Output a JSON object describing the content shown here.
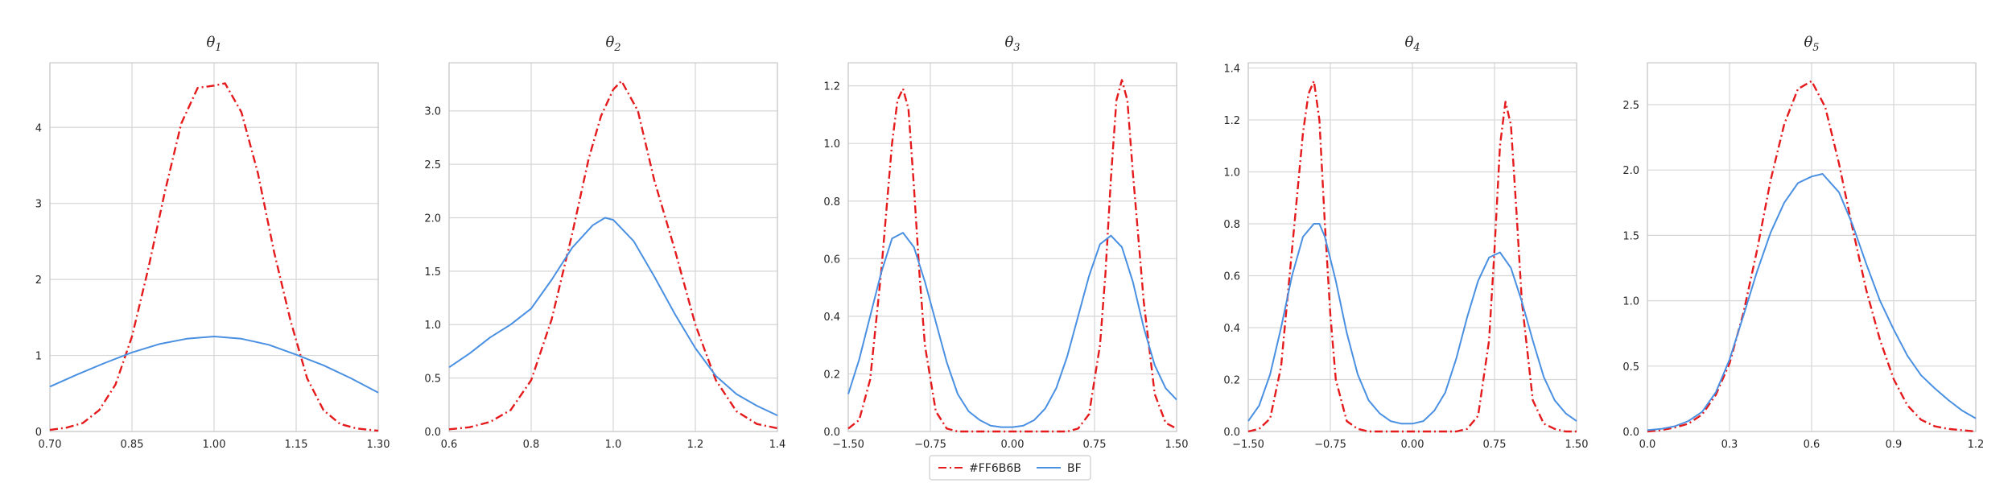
{
  "colors": {
    "series_1": "#e41a1c",
    "series_2": "#4a90e2"
  },
  "legend": {
    "placement": "bottom-center",
    "entries": [
      {
        "label": "#FF6B6B",
        "style": "dash-dot",
        "color": "#e41a1c"
      },
      {
        "label": "BF",
        "style": "solid",
        "color": "#4a90e2"
      }
    ]
  },
  "chart_data": [
    {
      "type": "line",
      "title": "θ",
      "title_subscript": "1",
      "xlim": [
        0.7,
        1.3
      ],
      "ylim": [
        0,
        4.85
      ],
      "xticks": [
        0.7,
        0.85,
        1.0,
        1.15,
        1.3
      ],
      "xtick_labels": [
        "0.70",
        "0.85",
        "1.00",
        "1.15",
        "1.30"
      ],
      "yticks": [
        0,
        1,
        2,
        3,
        4
      ],
      "ytick_labels": [
        "0",
        "1",
        "2",
        "3",
        "4"
      ],
      "grid": true,
      "series": [
        {
          "name": "#FF6B6B",
          "x": [
            0.7,
            0.73,
            0.76,
            0.79,
            0.82,
            0.85,
            0.88,
            0.91,
            0.94,
            0.97,
            0.99,
            1.0,
            1.02,
            1.05,
            1.08,
            1.11,
            1.14,
            1.17,
            1.2,
            1.23,
            1.26,
            1.3
          ],
          "y": [
            0.02,
            0.05,
            0.11,
            0.28,
            0.62,
            1.25,
            2.15,
            3.15,
            4.05,
            4.52,
            4.54,
            4.55,
            4.58,
            4.2,
            3.4,
            2.35,
            1.45,
            0.7,
            0.28,
            0.1,
            0.04,
            0.01
          ]
        },
        {
          "name": "BF",
          "x": [
            0.7,
            0.75,
            0.8,
            0.85,
            0.9,
            0.95,
            1.0,
            1.05,
            1.1,
            1.15,
            1.2,
            1.25,
            1.3
          ],
          "y": [
            0.59,
            0.75,
            0.9,
            1.04,
            1.15,
            1.22,
            1.25,
            1.22,
            1.14,
            1.01,
            0.87,
            0.7,
            0.51
          ]
        }
      ]
    },
    {
      "type": "line",
      "title": "θ",
      "title_subscript": "2",
      "xlim": [
        0.6,
        1.4
      ],
      "ylim": [
        0,
        3.45
      ],
      "xticks": [
        0.6,
        0.8,
        1.0,
        1.2,
        1.4
      ],
      "xtick_labels": [
        "0.6",
        "0.8",
        "1.0",
        "1.2",
        "1.4"
      ],
      "yticks": [
        0,
        0.5,
        1.0,
        1.5,
        2.0,
        2.5,
        3.0
      ],
      "ytick_labels": [
        "0.0",
        "0.5",
        "1.0",
        "1.5",
        "2.0",
        "2.5",
        "3.0"
      ],
      "grid": true,
      "series": [
        {
          "name": "#FF6B6B",
          "x": [
            0.6,
            0.65,
            0.7,
            0.75,
            0.8,
            0.85,
            0.9,
            0.94,
            0.97,
            1.0,
            1.02,
            1.06,
            1.1,
            1.15,
            1.2,
            1.25,
            1.3,
            1.35,
            1.4
          ],
          "y": [
            0.02,
            0.04,
            0.09,
            0.2,
            0.48,
            1.05,
            1.85,
            2.55,
            2.95,
            3.2,
            3.28,
            3.0,
            2.35,
            1.7,
            1.0,
            0.48,
            0.19,
            0.07,
            0.03
          ]
        },
        {
          "name": "BF",
          "x": [
            0.6,
            0.65,
            0.7,
            0.75,
            0.8,
            0.85,
            0.9,
            0.95,
            0.98,
            1.0,
            1.05,
            1.1,
            1.15,
            1.2,
            1.25,
            1.3,
            1.35,
            1.4
          ],
          "y": [
            0.6,
            0.73,
            0.88,
            1.0,
            1.15,
            1.42,
            1.72,
            1.93,
            2.0,
            1.98,
            1.78,
            1.45,
            1.1,
            0.78,
            0.52,
            0.35,
            0.24,
            0.15
          ]
        }
      ]
    },
    {
      "type": "line",
      "title": "θ",
      "title_subscript": "3",
      "xlim": [
        -1.5,
        1.5
      ],
      "ylim": [
        0,
        1.28
      ],
      "xticks": [
        -1.5,
        -0.75,
        0.0,
        0.75,
        1.5
      ],
      "xtick_labels": [
        "−1.50",
        "−0.75",
        "0.00",
        "0.75",
        "1.50"
      ],
      "yticks": [
        0,
        0.2,
        0.4,
        0.6,
        0.8,
        1.0,
        1.2
      ],
      "ytick_labels": [
        "0.0",
        "0.2",
        "0.4",
        "0.6",
        "0.8",
        "1.0",
        "1.2"
      ],
      "grid": true,
      "series": [
        {
          "name": "#FF6B6B",
          "x": [
            -1.5,
            -1.4,
            -1.3,
            -1.2,
            -1.1,
            -1.05,
            -1.0,
            -0.95,
            -0.9,
            -0.85,
            -0.8,
            -0.7,
            -0.6,
            -0.5,
            -0.3,
            0.0,
            0.3,
            0.5,
            0.6,
            0.7,
            0.8,
            0.85,
            0.9,
            0.95,
            1.0,
            1.05,
            1.1,
            1.2,
            1.3,
            1.4,
            1.5
          ],
          "y": [
            0.01,
            0.04,
            0.18,
            0.55,
            1.0,
            1.15,
            1.19,
            1.12,
            0.85,
            0.55,
            0.3,
            0.07,
            0.01,
            0.0,
            0.0,
            0.0,
            0.0,
            0.0,
            0.01,
            0.06,
            0.3,
            0.55,
            0.88,
            1.15,
            1.22,
            1.15,
            0.9,
            0.45,
            0.13,
            0.03,
            0.01
          ]
        },
        {
          "name": "BF",
          "x": [
            -1.5,
            -1.4,
            -1.3,
            -1.2,
            -1.1,
            -1.0,
            -0.9,
            -0.8,
            -0.7,
            -0.6,
            -0.5,
            -0.4,
            -0.3,
            -0.2,
            -0.1,
            0.0,
            0.1,
            0.2,
            0.3,
            0.4,
            0.5,
            0.6,
            0.7,
            0.8,
            0.9,
            1.0,
            1.1,
            1.2,
            1.3,
            1.4,
            1.5
          ],
          "y": [
            0.13,
            0.25,
            0.4,
            0.55,
            0.67,
            0.69,
            0.64,
            0.52,
            0.38,
            0.24,
            0.13,
            0.07,
            0.04,
            0.02,
            0.015,
            0.015,
            0.02,
            0.04,
            0.08,
            0.15,
            0.26,
            0.4,
            0.54,
            0.65,
            0.68,
            0.64,
            0.52,
            0.36,
            0.23,
            0.15,
            0.11
          ]
        }
      ]
    },
    {
      "type": "line",
      "title": "θ",
      "title_subscript": "4",
      "xlim": [
        -1.5,
        1.5
      ],
      "ylim": [
        0,
        1.42
      ],
      "xticks": [
        -1.5,
        -0.75,
        0.0,
        0.75,
        1.5
      ],
      "xtick_labels": [
        "−1.50",
        "−0.75",
        "0.00",
        "0.75",
        "1.50"
      ],
      "yticks": [
        0,
        0.2,
        0.4,
        0.6,
        0.8,
        1.0,
        1.2,
        1.4
      ],
      "ytick_labels": [
        "0.0",
        "0.2",
        "0.4",
        "0.6",
        "0.8",
        "1.0",
        "1.2",
        "1.4"
      ],
      "grid": true,
      "series": [
        {
          "name": "#FF6B6B",
          "x": [
            -1.5,
            -1.4,
            -1.3,
            -1.2,
            -1.1,
            -1.0,
            -0.95,
            -0.9,
            -0.85,
            -0.8,
            -0.75,
            -0.7,
            -0.6,
            -0.5,
            -0.4,
            -0.2,
            0.0,
            0.2,
            0.4,
            0.5,
            0.6,
            0.7,
            0.75,
            0.8,
            0.85,
            0.9,
            0.95,
            1.0,
            1.1,
            1.2,
            1.3,
            1.4,
            1.5
          ],
          "y": [
            0.0,
            0.01,
            0.05,
            0.25,
            0.7,
            1.15,
            1.3,
            1.35,
            1.2,
            0.8,
            0.45,
            0.2,
            0.04,
            0.01,
            0.0,
            0.0,
            0.0,
            0.0,
            0.0,
            0.01,
            0.06,
            0.35,
            0.7,
            1.1,
            1.27,
            1.18,
            0.85,
            0.5,
            0.12,
            0.03,
            0.01,
            0.0,
            0.0
          ]
        },
        {
          "name": "BF",
          "x": [
            -1.5,
            -1.4,
            -1.3,
            -1.2,
            -1.1,
            -1.0,
            -0.9,
            -0.85,
            -0.8,
            -0.7,
            -0.6,
            -0.5,
            -0.4,
            -0.3,
            -0.2,
            -0.1,
            0.0,
            0.1,
            0.2,
            0.3,
            0.4,
            0.5,
            0.6,
            0.7,
            0.8,
            0.9,
            1.0,
            1.1,
            1.2,
            1.3,
            1.4,
            1.5
          ],
          "y": [
            0.04,
            0.1,
            0.22,
            0.4,
            0.6,
            0.75,
            0.8,
            0.8,
            0.75,
            0.58,
            0.38,
            0.22,
            0.12,
            0.07,
            0.04,
            0.03,
            0.03,
            0.04,
            0.08,
            0.15,
            0.28,
            0.44,
            0.58,
            0.67,
            0.69,
            0.63,
            0.5,
            0.35,
            0.21,
            0.12,
            0.07,
            0.04
          ]
        }
      ]
    },
    {
      "type": "line",
      "title": "θ",
      "title_subscript": "5",
      "xlim": [
        0.0,
        1.2
      ],
      "ylim": [
        0,
        2.82
      ],
      "xticks": [
        0.0,
        0.3,
        0.6,
        0.9,
        1.2
      ],
      "xtick_labels": [
        "0.0",
        "0.3",
        "0.6",
        "0.9",
        "1.2"
      ],
      "yticks": [
        0,
        0.5,
        1.0,
        1.5,
        2.0,
        2.5
      ],
      "ytick_labels": [
        "0.0",
        "0.5",
        "1.0",
        "1.5",
        "2.0",
        "2.5"
      ],
      "grid": true,
      "series": [
        {
          "name": "#FF6B6B",
          "x": [
            0.0,
            0.05,
            0.1,
            0.15,
            0.2,
            0.25,
            0.3,
            0.35,
            0.4,
            0.45,
            0.5,
            0.55,
            0.6,
            0.65,
            0.7,
            0.75,
            0.8,
            0.85,
            0.9,
            0.95,
            1.0,
            1.05,
            1.1,
            1.15,
            1.2
          ],
          "y": [
            0.0,
            0.01,
            0.03,
            0.06,
            0.13,
            0.28,
            0.52,
            0.9,
            1.38,
            1.92,
            2.35,
            2.62,
            2.68,
            2.48,
            2.05,
            1.55,
            1.08,
            0.7,
            0.4,
            0.2,
            0.09,
            0.04,
            0.02,
            0.01,
            0.0
          ]
        },
        {
          "name": "BF",
          "x": [
            0.0,
            0.05,
            0.1,
            0.15,
            0.2,
            0.25,
            0.3,
            0.35,
            0.4,
            0.45,
            0.5,
            0.55,
            0.6,
            0.64,
            0.7,
            0.75,
            0.8,
            0.85,
            0.9,
            0.95,
            1.0,
            1.05,
            1.1,
            1.15,
            1.2
          ],
          "y": [
            0.01,
            0.02,
            0.04,
            0.08,
            0.15,
            0.3,
            0.55,
            0.88,
            1.22,
            1.52,
            1.75,
            1.9,
            1.95,
            1.97,
            1.83,
            1.58,
            1.28,
            1.0,
            0.78,
            0.58,
            0.43,
            0.33,
            0.24,
            0.16,
            0.1
          ]
        }
      ]
    }
  ]
}
